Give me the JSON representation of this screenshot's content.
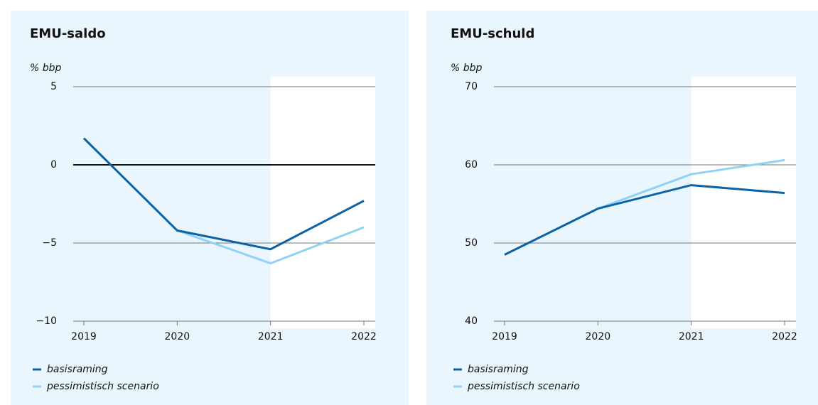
{
  "chart_data": [
    {
      "type": "line",
      "title": "EMU-saldo",
      "y_label": "% bbp",
      "categories": [
        "2019",
        "2020",
        "2021",
        "2022"
      ],
      "series": [
        {
          "name": "basisraming",
          "color": "#0b62a4",
          "values": [
            1.7,
            -4.2,
            -5.4,
            -2.3
          ]
        },
        {
          "name": "pessimistisch scenario",
          "color": "#8fd2f5",
          "values": [
            null,
            -4.2,
            -6.3,
            -4.0
          ]
        }
      ],
      "ylim": [
        -10,
        5
      ],
      "yticks": [
        {
          "value": -10,
          "label": "−10"
        },
        {
          "value": -5,
          "label": "−5"
        },
        0,
        5
      ],
      "grid": true
    },
    {
      "type": "line",
      "title": "EMU-schuld",
      "y_label": "% bbp",
      "categories": [
        "2019",
        "2020",
        "2021",
        "2022"
      ],
      "series": [
        {
          "name": "basisraming",
          "color": "#0b62a4",
          "values": [
            48.5,
            54.4,
            57.4,
            56.4
          ]
        },
        {
          "name": "pessimistisch scenario",
          "color": "#8fd2f5",
          "values": [
            null,
            54.4,
            58.8,
            60.6
          ]
        }
      ],
      "ylim": [
        40,
        70
      ],
      "yticks": [
        40,
        50,
        60,
        70
      ],
      "grid": true
    }
  ]
}
